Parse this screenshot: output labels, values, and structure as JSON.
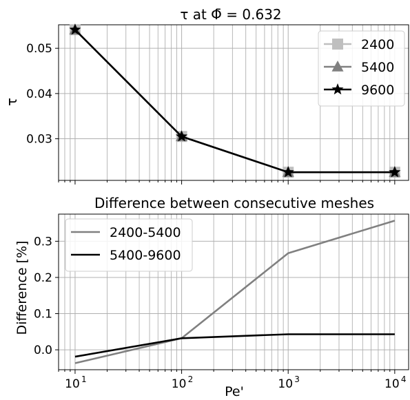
{
  "chart_data": [
    {
      "type": "line",
      "title": "τ at Φ̄ = 0.632",
      "xlabel": "",
      "ylabel": "τ",
      "xscale": "log",
      "xlim": [
        7.0,
        13500
      ],
      "ylim": [
        0.0208,
        0.0552
      ],
      "yticks": [
        0.03,
        0.04,
        0.05
      ],
      "ytick_labels": [
        "0.03",
        "0.04",
        "0.05"
      ],
      "grid": true,
      "legend_position": "top-right",
      "x": [
        10,
        100,
        1000,
        10000
      ],
      "series": [
        {
          "name": "2400",
          "values": [
            0.0541,
            0.0305,
            0.0226,
            0.0226
          ],
          "color": "#bfbfbf",
          "marker": "square"
        },
        {
          "name": "5400",
          "values": [
            0.0541,
            0.0305,
            0.0226,
            0.0226
          ],
          "color": "#808080",
          "marker": "triangle"
        },
        {
          "name": "9600",
          "values": [
            0.0541,
            0.0305,
            0.0226,
            0.0226
          ],
          "color": "#000000",
          "marker": "star"
        }
      ]
    },
    {
      "type": "line",
      "title": "Difference between consecutive meshes",
      "xlabel": "Pe'",
      "ylabel": "Difference [%]",
      "xscale": "log",
      "xlim": [
        7.0,
        13500
      ],
      "ylim": [
        -0.055,
        0.375
      ],
      "yticks": [
        0.0,
        0.1,
        0.2,
        0.3
      ],
      "ytick_labels": [
        "0.0",
        "0.1",
        "0.2",
        "0.3"
      ],
      "grid": true,
      "legend_position": "top-left",
      "x": [
        10,
        100,
        1000,
        10000
      ],
      "xtick_bases": [
        "10",
        "10",
        "10",
        "10"
      ],
      "xtick_exponents": [
        "1",
        "2",
        "3",
        "4"
      ],
      "series": [
        {
          "name": "2400-5400",
          "values": [
            -0.037,
            0.032,
            0.267,
            0.357
          ],
          "color": "#808080"
        },
        {
          "name": "5400-9600",
          "values": [
            -0.019,
            0.032,
            0.043,
            0.043
          ],
          "color": "#000000"
        }
      ]
    }
  ]
}
